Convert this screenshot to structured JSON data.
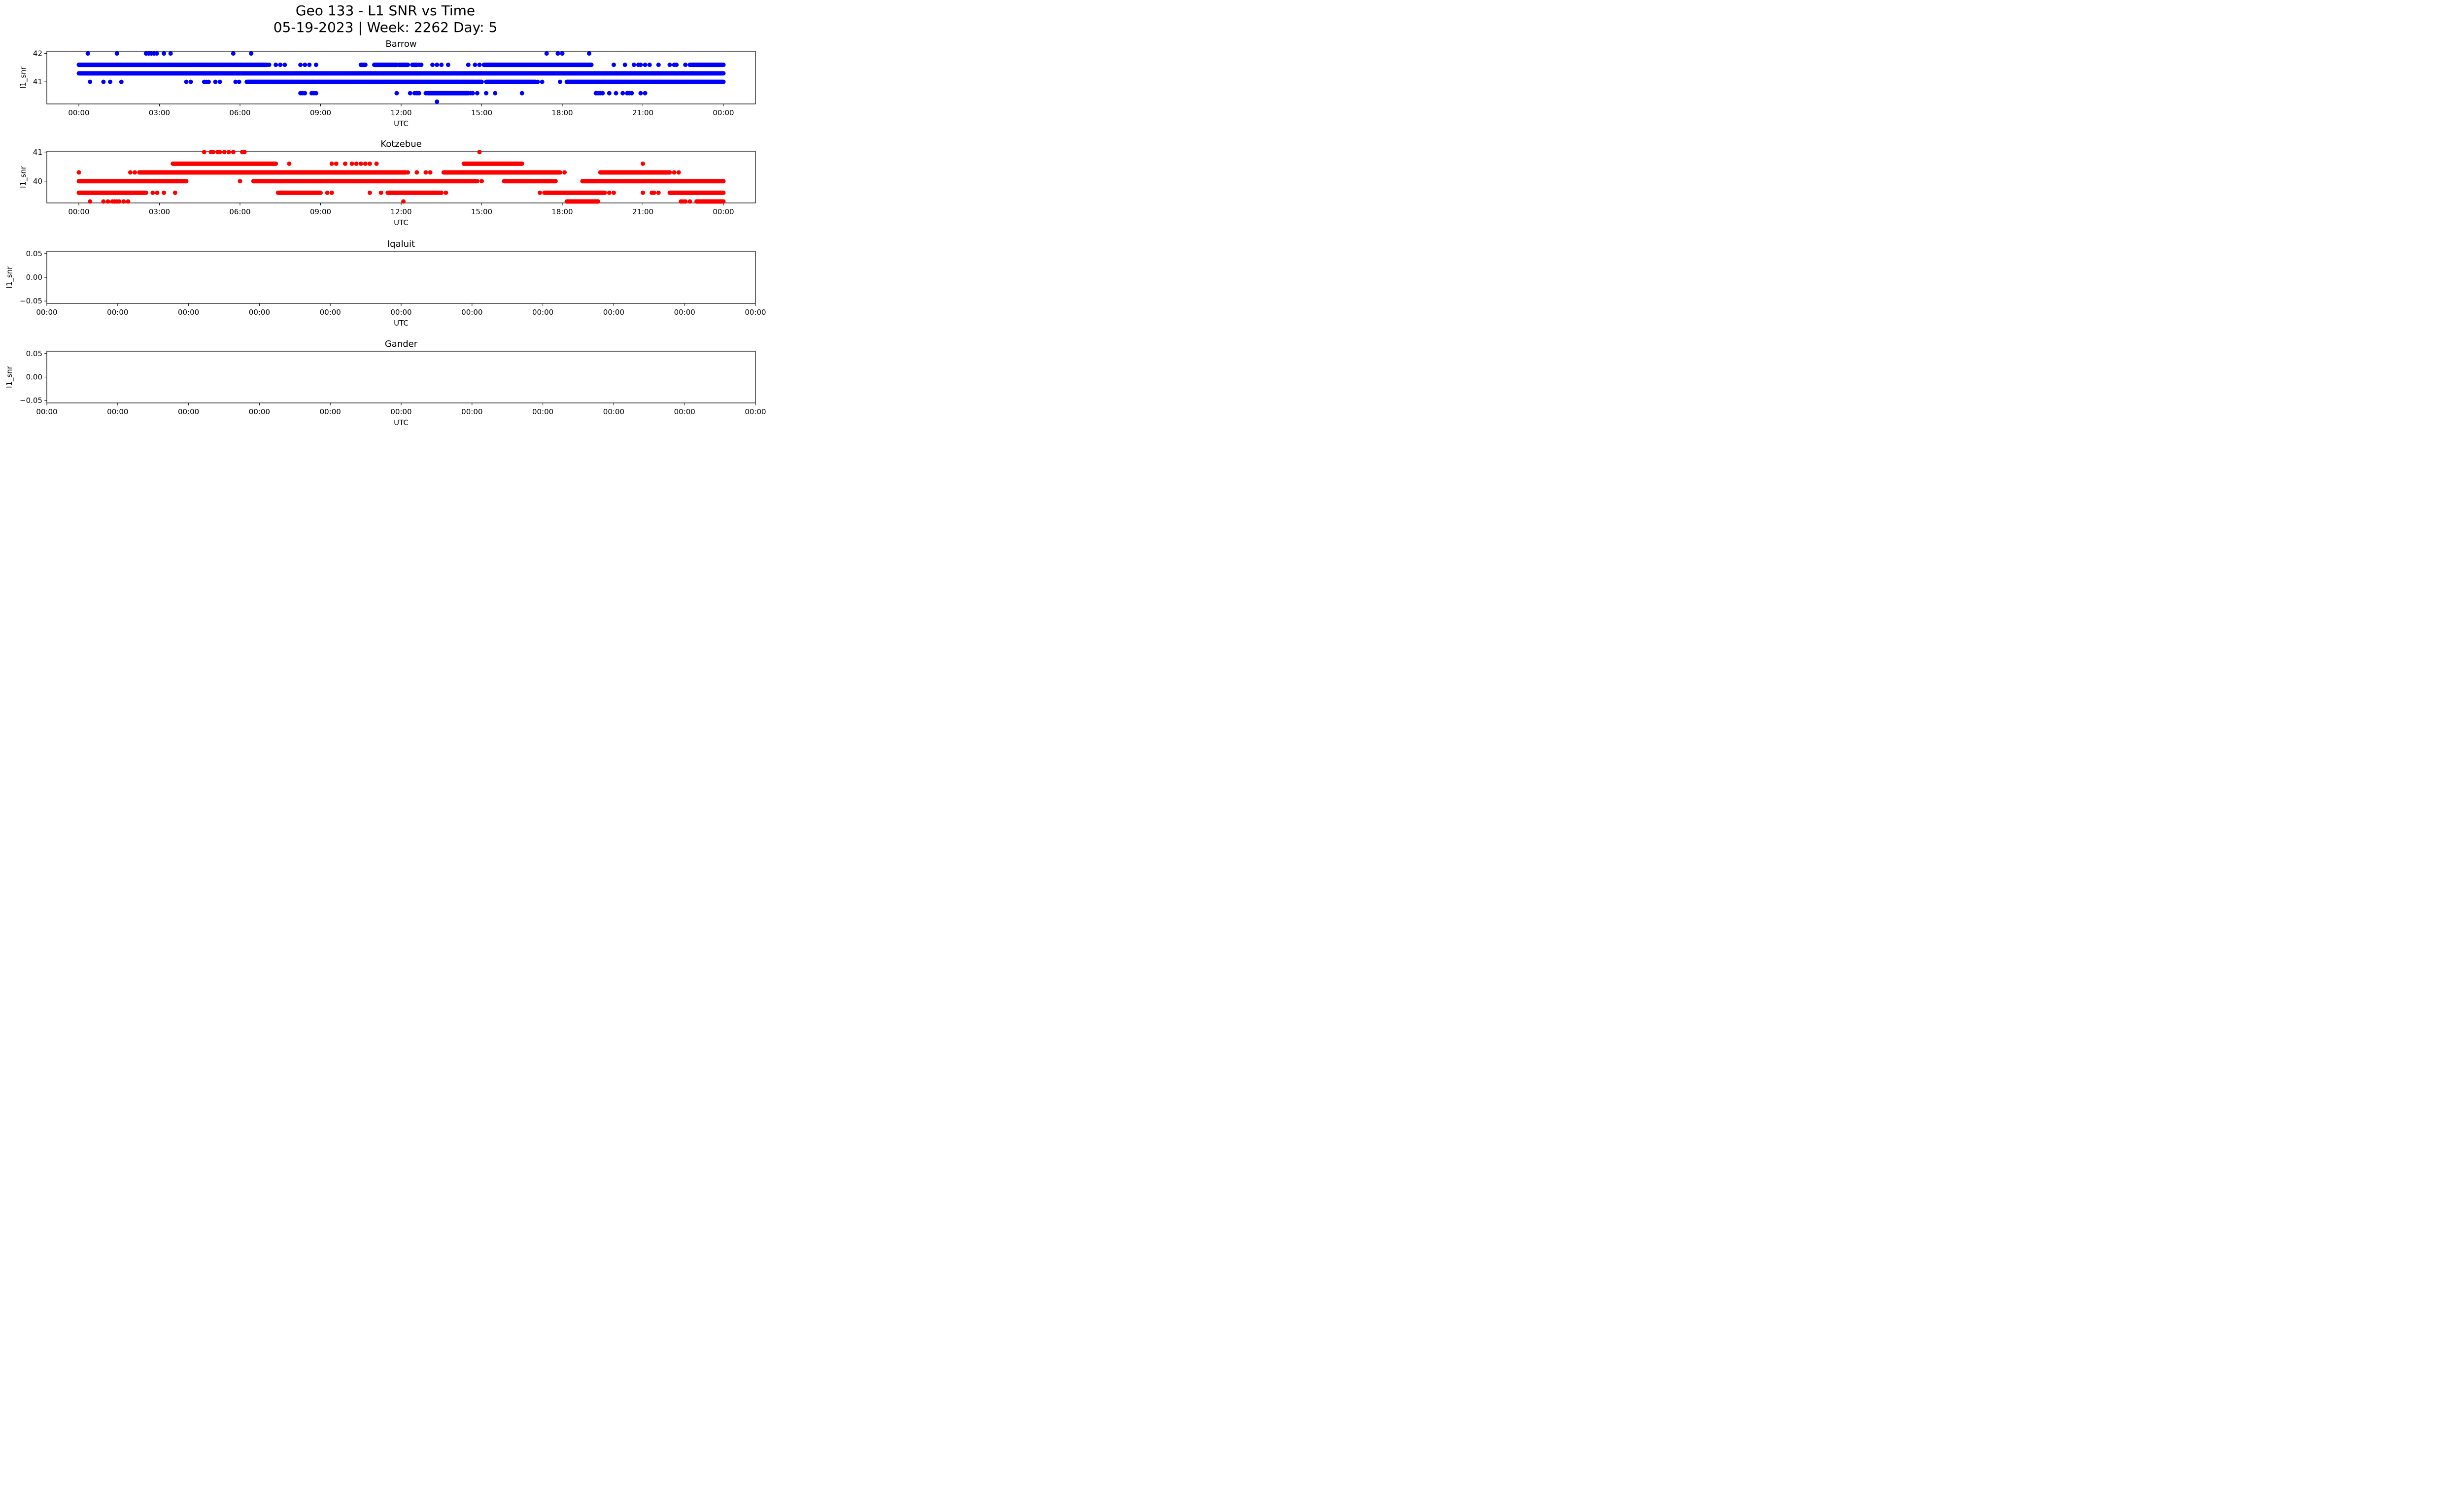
{
  "figure": {
    "title_line1": "Geo 133 - L1 SNR vs Time",
    "title_line2": "05-19-2023 | Week: 2262 Day: 5"
  },
  "chart_data": [
    {
      "type": "scatter",
      "title": "Barrow",
      "xlabel": "UTC",
      "ylabel": "l1_snr",
      "color": "#0000ff",
      "xlim": [
        "2023-05-18 22:48",
        "2023-05-20 01:12"
      ],
      "ylim": [
        40.22,
        42.08
      ],
      "xticks": [
        "00:00",
        "03:00",
        "06:00",
        "09:00",
        "12:00",
        "15:00",
        "18:00",
        "21:00",
        "00:00"
      ],
      "yticks": [
        "41",
        "42"
      ],
      "bands": [
        {
          "y": 41.6,
          "ranges": [
            [
              "00:00",
              "07:00"
            ],
            [
              "10:30",
              "10:40"
            ],
            [
              "11:00",
              "11:50"
            ],
            [
              "11:55",
              "12:15"
            ],
            [
              "12:25",
              "12:35"
            ],
            [
              "15:05",
              "19:05"
            ],
            [
              "22:45",
              "24:00"
            ]
          ]
        },
        {
          "y": 41.3,
          "ranges": [
            [
              "00:00",
              "24:00"
            ]
          ]
        },
        {
          "y": 41.0,
          "ranges": [
            [
              "06:15",
              "15:00"
            ],
            [
              "15:10",
              "17:00"
            ],
            [
              "18:10",
              "24:00"
            ]
          ]
        },
        {
          "y": 40.6,
          "ranges": [
            [
              "13:00",
              "14:30"
            ]
          ]
        }
      ],
      "points": [
        {
          "x": "00:20",
          "y": 42
        },
        {
          "x": "01:25",
          "y": 42
        },
        {
          "x": "02:30",
          "y": 42
        },
        {
          "x": "02:36",
          "y": 42
        },
        {
          "x": "02:42",
          "y": 42
        },
        {
          "x": "02:48",
          "y": 42
        },
        {
          "x": "02:54",
          "y": 42
        },
        {
          "x": "03:10",
          "y": 42
        },
        {
          "x": "03:25",
          "y": 42
        },
        {
          "x": "05:45",
          "y": 42
        },
        {
          "x": "06:25",
          "y": 42
        },
        {
          "x": "17:25",
          "y": 42
        },
        {
          "x": "17:50",
          "y": 42
        },
        {
          "x": "18:00",
          "y": 42
        },
        {
          "x": "19:00",
          "y": 42
        },
        {
          "x": "07:05",
          "y": 41.6
        },
        {
          "x": "07:20",
          "y": 41.6
        },
        {
          "x": "07:30",
          "y": 41.6
        },
        {
          "x": "07:40",
          "y": 41.6
        },
        {
          "x": "08:15",
          "y": 41.6
        },
        {
          "x": "08:25",
          "y": 41.6
        },
        {
          "x": "08:35",
          "y": 41.6
        },
        {
          "x": "08:50",
          "y": 41.6
        },
        {
          "x": "12:40",
          "y": 41.6
        },
        {
          "x": "12:45",
          "y": 41.6
        },
        {
          "x": "13:10",
          "y": 41.6
        },
        {
          "x": "13:20",
          "y": 41.6
        },
        {
          "x": "13:30",
          "y": 41.6
        },
        {
          "x": "13:45",
          "y": 41.6
        },
        {
          "x": "14:30",
          "y": 41.6
        },
        {
          "x": "14:45",
          "y": 41.6
        },
        {
          "x": "14:55",
          "y": 41.6
        },
        {
          "x": "19:55",
          "y": 41.6
        },
        {
          "x": "20:20",
          "y": 41.6
        },
        {
          "x": "20:40",
          "y": 41.6
        },
        {
          "x": "20:50",
          "y": 41.6
        },
        {
          "x": "20:55",
          "y": 41.6
        },
        {
          "x": "21:05",
          "y": 41.6
        },
        {
          "x": "21:15",
          "y": 41.6
        },
        {
          "x": "21:35",
          "y": 41.6
        },
        {
          "x": "22:00",
          "y": 41.6
        },
        {
          "x": "22:10",
          "y": 41.6
        },
        {
          "x": "22:15",
          "y": 41.6
        },
        {
          "x": "22:35",
          "y": 41.6
        },
        {
          "x": "00:25",
          "y": 41
        },
        {
          "x": "00:55",
          "y": 41
        },
        {
          "x": "01:10",
          "y": 41
        },
        {
          "x": "01:35",
          "y": 41
        },
        {
          "x": "04:00",
          "y": 41
        },
        {
          "x": "04:10",
          "y": 41
        },
        {
          "x": "04:40",
          "y": 41
        },
        {
          "x": "04:45",
          "y": 41
        },
        {
          "x": "04:50",
          "y": 41
        },
        {
          "x": "05:05",
          "y": 41
        },
        {
          "x": "05:15",
          "y": 41
        },
        {
          "x": "05:50",
          "y": 41
        },
        {
          "x": "05:58",
          "y": 41
        },
        {
          "x": "17:05",
          "y": 41
        },
        {
          "x": "17:15",
          "y": 41
        },
        {
          "x": "17:55",
          "y": 41
        },
        {
          "x": "08:15",
          "y": 40.6
        },
        {
          "x": "08:20",
          "y": 40.6
        },
        {
          "x": "08:25",
          "y": 40.6
        },
        {
          "x": "08:40",
          "y": 40.6
        },
        {
          "x": "08:45",
          "y": 40.6
        },
        {
          "x": "08:50",
          "y": 40.6
        },
        {
          "x": "11:50",
          "y": 40.6
        },
        {
          "x": "12:20",
          "y": 40.6
        },
        {
          "x": "12:30",
          "y": 40.6
        },
        {
          "x": "12:35",
          "y": 40.6
        },
        {
          "x": "12:40",
          "y": 40.6
        },
        {
          "x": "12:55",
          "y": 40.6
        },
        {
          "x": "14:35",
          "y": 40.6
        },
        {
          "x": "14:40",
          "y": 40.6
        },
        {
          "x": "14:50",
          "y": 40.6
        },
        {
          "x": "15:10",
          "y": 40.6
        },
        {
          "x": "15:30",
          "y": 40.6
        },
        {
          "x": "16:30",
          "y": 40.6
        },
        {
          "x": "19:15",
          "y": 40.6
        },
        {
          "x": "19:20",
          "y": 40.6
        },
        {
          "x": "19:25",
          "y": 40.6
        },
        {
          "x": "19:30",
          "y": 40.6
        },
        {
          "x": "19:45",
          "y": 40.6
        },
        {
          "x": "20:00",
          "y": 40.6
        },
        {
          "x": "20:15",
          "y": 40.6
        },
        {
          "x": "20:25",
          "y": 40.6
        },
        {
          "x": "20:30",
          "y": 40.6
        },
        {
          "x": "20:35",
          "y": 40.6
        },
        {
          "x": "20:55",
          "y": 40.6
        },
        {
          "x": "21:05",
          "y": 40.6
        },
        {
          "x": "13:20",
          "y": 40.3
        }
      ]
    },
    {
      "type": "scatter",
      "title": "Kotzebue",
      "xlabel": "UTC",
      "ylabel": "l1_snr",
      "color": "#ff0000",
      "xlim": [
        "2023-05-18 22:48",
        "2023-05-20 01:12"
      ],
      "ylim": [
        39.25,
        41.03
      ],
      "xticks": [
        "00:00",
        "03:00",
        "06:00",
        "09:00",
        "12:00",
        "15:00",
        "18:00",
        "21:00",
        "00:00"
      ],
      "yticks": [
        "40",
        "41"
      ],
      "bands": [
        {
          "y": 40.3,
          "ranges": [
            [
              "02:15",
              "03:30"
            ],
            [
              "03:30",
              "12:10"
            ],
            [
              "13:35",
              "17:55"
            ],
            [
              "19:25",
              "22:00"
            ]
          ]
        },
        {
          "y": 40.6,
          "ranges": [
            [
              "03:30",
              "07:20"
            ],
            [
              "14:20",
              "16:30"
            ]
          ]
        },
        {
          "y": 40.0,
          "ranges": [
            [
              "00:00",
              "04:00"
            ],
            [
              "06:30",
              "14:50"
            ],
            [
              "15:50",
              "17:45"
            ],
            [
              "18:45",
              "24:00"
            ]
          ]
        },
        {
          "y": 39.6,
          "ranges": [
            [
              "00:00",
              "02:30"
            ],
            [
              "07:25",
              "09:00"
            ],
            [
              "11:30",
              "13:30"
            ],
            [
              "17:20",
              "19:35"
            ],
            [
              "22:00",
              "24:00"
            ]
          ]
        },
        {
          "y": 39.3,
          "ranges": [
            [
              "18:10",
              "19:20"
            ],
            [
              "23:00",
              "24:00"
            ]
          ]
        }
      ],
      "points": [
        {
          "x": "00:00",
          "y": 40.3
        },
        {
          "x": "01:55",
          "y": 40.3
        },
        {
          "x": "02:05",
          "y": 40.3
        },
        {
          "x": "12:15",
          "y": 40.3
        },
        {
          "x": "12:35",
          "y": 40.3
        },
        {
          "x": "12:55",
          "y": 40.3
        },
        {
          "x": "13:05",
          "y": 40.3
        },
        {
          "x": "18:05",
          "y": 40.3
        },
        {
          "x": "22:10",
          "y": 40.3
        },
        {
          "x": "22:20",
          "y": 40.3
        },
        {
          "x": "04:40",
          "y": 41
        },
        {
          "x": "04:55",
          "y": 41
        },
        {
          "x": "05:00",
          "y": 41
        },
        {
          "x": "05:10",
          "y": 41
        },
        {
          "x": "05:15",
          "y": 41
        },
        {
          "x": "05:25",
          "y": 41
        },
        {
          "x": "05:35",
          "y": 41
        },
        {
          "x": "05:45",
          "y": 41
        },
        {
          "x": "06:05",
          "y": 41
        },
        {
          "x": "06:10",
          "y": 41
        },
        {
          "x": "14:55",
          "y": 41
        },
        {
          "x": "07:50",
          "y": 40.6
        },
        {
          "x": "09:25",
          "y": 40.6
        },
        {
          "x": "09:35",
          "y": 40.6
        },
        {
          "x": "09:55",
          "y": 40.6
        },
        {
          "x": "10:10",
          "y": 40.6
        },
        {
          "x": "10:20",
          "y": 40.6
        },
        {
          "x": "10:30",
          "y": 40.6
        },
        {
          "x": "10:40",
          "y": 40.6
        },
        {
          "x": "10:50",
          "y": 40.6
        },
        {
          "x": "11:05",
          "y": 40.6
        },
        {
          "x": "21:00",
          "y": 40.6
        },
        {
          "x": "06:00",
          "y": 40
        },
        {
          "x": "15:00",
          "y": 40
        },
        {
          "x": "02:45",
          "y": 39.6
        },
        {
          "x": "02:55",
          "y": 39.6
        },
        {
          "x": "03:10",
          "y": 39.6
        },
        {
          "x": "03:35",
          "y": 39.6
        },
        {
          "x": "09:15",
          "y": 39.6
        },
        {
          "x": "09:25",
          "y": 39.6
        },
        {
          "x": "10:50",
          "y": 39.6
        },
        {
          "x": "11:15",
          "y": 39.6
        },
        {
          "x": "13:40",
          "y": 39.6
        },
        {
          "x": "17:10",
          "y": 39.6
        },
        {
          "x": "19:45",
          "y": 39.6
        },
        {
          "x": "19:55",
          "y": 39.6
        },
        {
          "x": "21:00",
          "y": 39.6
        },
        {
          "x": "21:20",
          "y": 39.6
        },
        {
          "x": "21:25",
          "y": 39.6
        },
        {
          "x": "21:35",
          "y": 39.6
        },
        {
          "x": "00:25",
          "y": 39.3
        },
        {
          "x": "00:55",
          "y": 39.3
        },
        {
          "x": "01:05",
          "y": 39.3
        },
        {
          "x": "01:15",
          "y": 39.3
        },
        {
          "x": "01:20",
          "y": 39.3
        },
        {
          "x": "01:25",
          "y": 39.3
        },
        {
          "x": "01:30",
          "y": 39.3
        },
        {
          "x": "01:40",
          "y": 39.3
        },
        {
          "x": "01:50",
          "y": 39.3
        },
        {
          "x": "12:05",
          "y": 39.3
        },
        {
          "x": "22:25",
          "y": 39.3
        },
        {
          "x": "22:30",
          "y": 39.3
        },
        {
          "x": "22:35",
          "y": 39.3
        },
        {
          "x": "22:45",
          "y": 39.3
        }
      ]
    },
    {
      "type": "scatter",
      "title": "Iqaluit",
      "xlabel": "UTC",
      "ylabel": "l1_snr",
      "color": "#000000",
      "ylim": [
        -0.055,
        0.055
      ],
      "xticks": [
        "00:00",
        "00:00",
        "00:00",
        "00:00",
        "00:00",
        "00:00",
        "00:00",
        "00:00",
        "00:00",
        "00:00",
        "00:00"
      ],
      "yticks": [
        "-0.05",
        "0.00",
        "0.05"
      ],
      "bands": [],
      "points": []
    },
    {
      "type": "scatter",
      "title": "Gander",
      "xlabel": "UTC",
      "ylabel": "l1_snr",
      "color": "#000000",
      "ylim": [
        -0.055,
        0.055
      ],
      "xticks": [
        "00:00",
        "00:00",
        "00:00",
        "00:00",
        "00:00",
        "00:00",
        "00:00",
        "00:00",
        "00:00",
        "00:00",
        "00:00"
      ],
      "yticks": [
        "-0.05",
        "0.00",
        "0.05"
      ],
      "bands": [],
      "points": []
    }
  ]
}
